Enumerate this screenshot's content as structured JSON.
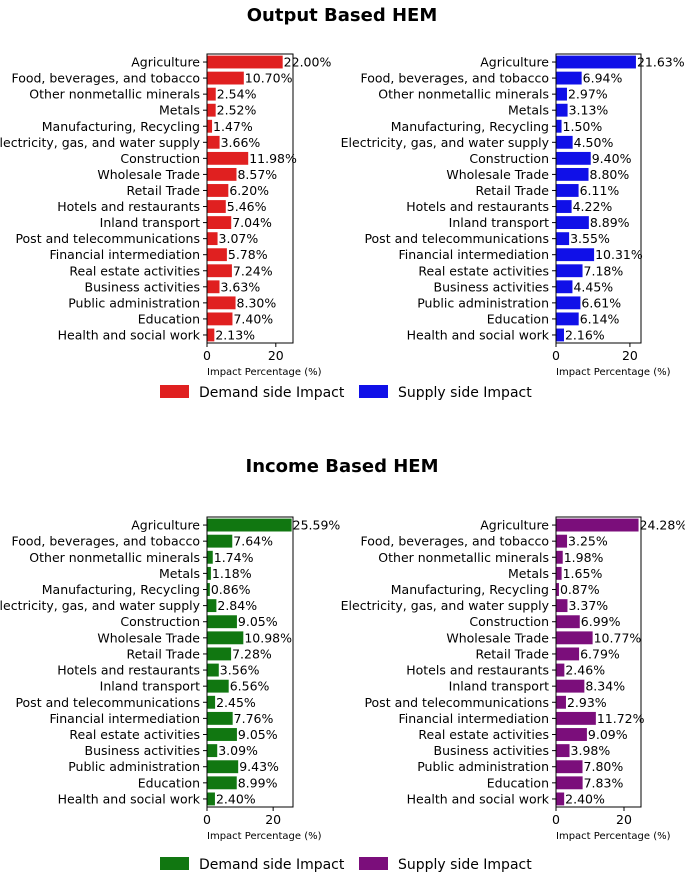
{
  "chart_data": [
    {
      "type": "bar",
      "orientation": "horizontal",
      "title": "Output Based HEM",
      "xlabel": "Impact Percentage (%)",
      "xlim": [
        0,
        25
      ],
      "xticks": [
        0,
        20
      ],
      "categories": [
        "Agriculture",
        "Food, beverages, and tobacco",
        "Other nonmetallic minerals",
        "Metals",
        "Manufacturing, Recycling",
        "Electricity, gas, and water supply",
        "Construction",
        "Wholesale Trade",
        "Retail Trade",
        "Hotels and restaurants",
        "Inland transport",
        "Post and telecommunications",
        "Financial intermediation",
        "Real estate activities",
        "Business activities",
        "Public administration",
        "Education",
        "Health and social work"
      ],
      "series": [
        {
          "name": "Demand side Impact",
          "color": "#e02020",
          "values": [
            22.0,
            10.7,
            2.54,
            2.52,
            1.47,
            3.66,
            11.98,
            8.57,
            6.2,
            5.46,
            7.04,
            3.07,
            5.78,
            7.24,
            3.63,
            8.3,
            7.4,
            2.13
          ],
          "labels": [
            "22.00%",
            "10.70%",
            "2.54%",
            "2.52%",
            "1.47%",
            "3.66%",
            "11.98%",
            "8.57%",
            "6.20%",
            "5.46%",
            "7.04%",
            "3.07%",
            "5.78%",
            "7.24%",
            "3.63%",
            "8.30%",
            "7.40%",
            "2.13%"
          ]
        }
      ]
    },
    {
      "type": "bar",
      "orientation": "horizontal",
      "title": "",
      "xlabel": "Impact Percentage (%)",
      "xlim": [
        0,
        23
      ],
      "xticks": [
        0,
        20
      ],
      "categories": [
        "Agriculture",
        "Food, beverages, and tobacco",
        "Other nonmetallic minerals",
        "Metals",
        "Manufacturing, Recycling",
        "Electricity, gas, and water supply",
        "Construction",
        "Wholesale Trade",
        "Retail Trade",
        "Hotels and restaurants",
        "Inland transport",
        "Post and telecommunications",
        "Financial intermediation",
        "Real estate activities",
        "Business activities",
        "Public administration",
        "Education",
        "Health and social work"
      ],
      "series": [
        {
          "name": "Supply side Impact",
          "color": "#1010e8",
          "values": [
            21.63,
            6.94,
            2.97,
            3.13,
            1.5,
            4.5,
            9.4,
            8.8,
            6.11,
            4.22,
            8.89,
            3.55,
            10.31,
            7.18,
            4.45,
            6.61,
            6.14,
            2.16
          ],
          "labels": [
            "21.63%",
            "6.94%",
            "2.97%",
            "3.13%",
            "1.50%",
            "4.50%",
            "9.40%",
            "8.80%",
            "6.11%",
            "4.22%",
            "8.89%",
            "3.55%",
            "10.31%",
            "7.18%",
            "4.45%",
            "6.61%",
            "6.14%",
            "2.16%"
          ]
        }
      ]
    },
    {
      "type": "bar",
      "orientation": "horizontal",
      "title": "Income Based HEM",
      "xlabel": "Impact Percentage (%)",
      "xlim": [
        0,
        26
      ],
      "xticks": [
        0,
        20
      ],
      "categories": [
        "Agriculture",
        "Food, beverages, and tobacco",
        "Other nonmetallic minerals",
        "Metals",
        "Manufacturing, Recycling",
        "Electricity, gas, and water supply",
        "Construction",
        "Wholesale Trade",
        "Retail Trade",
        "Hotels and restaurants",
        "Inland transport",
        "Post and telecommunications",
        "Financial intermediation",
        "Real estate activities",
        "Business activities",
        "Public administration",
        "Education",
        "Health and social work"
      ],
      "series": [
        {
          "name": "Demand side Impact",
          "color": "#117711",
          "values": [
            25.59,
            7.64,
            1.74,
            1.18,
            0.86,
            2.84,
            9.05,
            10.98,
            7.28,
            3.56,
            6.56,
            2.45,
            7.76,
            9.05,
            3.09,
            9.43,
            8.99,
            2.4
          ],
          "labels": [
            "25.59%",
            "7.64%",
            "1.74%",
            "1.18%",
            "0.86%",
            "2.84%",
            "9.05%",
            "10.98%",
            "7.28%",
            "3.56%",
            "6.56%",
            "2.45%",
            "7.76%",
            "9.05%",
            "3.09%",
            "9.43%",
            "8.99%",
            "2.40%"
          ]
        }
      ]
    },
    {
      "type": "bar",
      "orientation": "horizontal",
      "title": "",
      "xlabel": "Impact Percentage (%)",
      "xlim": [
        0,
        25
      ],
      "xticks": [
        0,
        20
      ],
      "categories": [
        "Agriculture",
        "Food, beverages, and tobacco",
        "Other nonmetallic minerals",
        "Metals",
        "Manufacturing, Recycling",
        "Electricity, gas, and water supply",
        "Construction",
        "Wholesale Trade",
        "Retail Trade",
        "Hotels and restaurants",
        "Inland transport",
        "Post and telecommunications",
        "Financial intermediation",
        "Real estate activities",
        "Business activities",
        "Public administration",
        "Education",
        "Health and social work"
      ],
      "series": [
        {
          "name": "Supply side Impact",
          "color": "#7b0e7b",
          "values": [
            24.28,
            3.25,
            1.98,
            1.65,
            0.87,
            3.37,
            6.99,
            10.77,
            6.79,
            2.46,
            8.34,
            2.93,
            11.72,
            9.09,
            3.98,
            7.8,
            7.83,
            2.4
          ],
          "labels": [
            "24.28%",
            "3.25%",
            "1.98%",
            "1.65%",
            "0.87%",
            "3.37%",
            "6.99%",
            "10.77%",
            "6.79%",
            "2.46%",
            "8.34%",
            "2.93%",
            "11.72%",
            "9.09%",
            "3.98%",
            "7.80%",
            "7.83%",
            "2.40%"
          ]
        }
      ]
    }
  ]
}
